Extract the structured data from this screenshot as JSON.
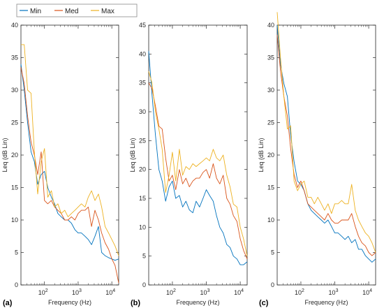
{
  "legend": {
    "placement": "top-left",
    "items": [
      {
        "label": "Min",
        "color": "#0072BD"
      },
      {
        "label": "Med",
        "color": "#D95319"
      },
      {
        "label": "Max",
        "color": "#EDB120"
      }
    ]
  },
  "chart_data": [
    {
      "type": "line",
      "panel_label": "(a)",
      "xlabel": "Frequency (Hz)",
      "ylabel": "Leq (dB Lin)",
      "xscale": "log",
      "xlim": [
        20,
        16000
      ],
      "ylim": [
        0,
        40
      ],
      "yticks": [
        0,
        5,
        10,
        15,
        20,
        25,
        30,
        35,
        40
      ],
      "xticks": [
        {
          "value": 100,
          "base": "10",
          "exp": "2"
        },
        {
          "value": 1000,
          "base": "10",
          "exp": "3"
        },
        {
          "value": 10000,
          "base": "10",
          "exp": "4"
        }
      ],
      "x": [
        20,
        25,
        31.5,
        40,
        50,
        63,
        80,
        100,
        125,
        160,
        200,
        250,
        315,
        400,
        500,
        630,
        800,
        1000,
        1250,
        1600,
        2000,
        2500,
        3150,
        4000,
        5000,
        6300,
        8000,
        10000,
        12500,
        16000
      ],
      "series": [
        {
          "name": "Min",
          "color": "#0072BD",
          "values": [
            34,
            30,
            25,
            20.5,
            19,
            15.5,
            17,
            17.5,
            15,
            13.5,
            12.5,
            11,
            10.5,
            10,
            10,
            9.5,
            8.5,
            8,
            8,
            7.5,
            7,
            6.2,
            7.5,
            9,
            5,
            4.5,
            4.2,
            4,
            3.8,
            4
          ]
        },
        {
          "name": "Med",
          "color": "#D95319",
          "values": [
            33.5,
            31,
            26,
            22,
            20,
            17,
            20.5,
            13,
            12.5,
            13,
            12,
            11.5,
            11,
            10,
            10,
            10.5,
            10,
            11,
            11.5,
            11.5,
            12,
            9,
            11.5,
            10,
            8,
            6.5,
            5.5,
            4,
            3,
            0.3
          ]
        },
        {
          "name": "Max",
          "color": "#EDB120",
          "values": [
            37,
            37,
            30,
            29.5,
            20.5,
            14,
            19,
            21,
            13.5,
            14.5,
            12,
            12.5,
            11,
            11.5,
            10.5,
            11,
            11.5,
            12,
            12.5,
            12,
            13.5,
            14.5,
            13,
            14,
            12,
            9,
            8,
            7,
            6,
            4.5
          ]
        }
      ]
    },
    {
      "type": "line",
      "panel_label": "(b)",
      "xlabel": "Frequency (Hz)",
      "ylabel": "Leq (dB Lin)",
      "xscale": "log",
      "xlim": [
        20,
        16000
      ],
      "ylim": [
        0,
        45
      ],
      "yticks": [
        0,
        5,
        10,
        15,
        20,
        25,
        30,
        35,
        40,
        45
      ],
      "xticks": [
        {
          "value": 100,
          "base": "10",
          "exp": "2"
        },
        {
          "value": 1000,
          "base": "10",
          "exp": "3"
        },
        {
          "value": 10000,
          "base": "10",
          "exp": "4"
        }
      ],
      "x": [
        20,
        25,
        31.5,
        40,
        50,
        63,
        80,
        100,
        125,
        160,
        200,
        250,
        315,
        400,
        500,
        630,
        800,
        1000,
        1250,
        1600,
        2000,
        2500,
        3150,
        4000,
        5000,
        6300,
        8000,
        10000,
        12500,
        16000
      ],
      "series": [
        {
          "name": "Min",
          "color": "#0072BD",
          "values": [
            40.5,
            33,
            26,
            20,
            18,
            14.5,
            17,
            18,
            15,
            15.5,
            13.5,
            14.5,
            13,
            12.5,
            14.5,
            13.5,
            15,
            16.5,
            15.5,
            14.5,
            12,
            10,
            9,
            7,
            6.5,
            5,
            4.5,
            3.5,
            3.5,
            4
          ]
        },
        {
          "name": "Med",
          "color": "#D95319",
          "values": [
            35,
            34,
            31,
            27.5,
            27,
            22,
            18,
            19,
            16.5,
            20,
            17.5,
            18.5,
            17,
            18,
            18.5,
            18.5,
            19.5,
            20,
            18.5,
            21,
            18.5,
            17.5,
            19,
            15,
            14,
            12,
            11,
            8,
            6,
            4.5
          ]
        },
        {
          "name": "Max",
          "color": "#EDB120",
          "values": [
            37,
            35,
            30,
            27,
            23.5,
            16,
            19,
            23,
            18,
            23.5,
            19,
            20.5,
            20,
            21,
            20.5,
            21,
            21.5,
            22,
            21.5,
            23.5,
            22,
            21.5,
            22.5,
            19,
            17,
            14,
            13.5,
            10,
            8,
            5
          ]
        }
      ]
    },
    {
      "type": "line",
      "panel_label": "(c)",
      "xlabel": "Frequency (Hz)",
      "ylabel": "Leq (dB Lin)",
      "xscale": "log",
      "xlim": [
        20,
        16000
      ],
      "ylim": [
        0,
        40
      ],
      "yticks": [
        0,
        5,
        10,
        15,
        20,
        25,
        30,
        35,
        40
      ],
      "xticks": [
        {
          "value": 100,
          "base": "10",
          "exp": "2"
        },
        {
          "value": 1000,
          "base": "10",
          "exp": "3"
        },
        {
          "value": 10000,
          "base": "10",
          "exp": "4"
        }
      ],
      "x": [
        20,
        25,
        31.5,
        40,
        50,
        63,
        80,
        100,
        125,
        160,
        200,
        250,
        315,
        400,
        500,
        630,
        800,
        1000,
        1250,
        1600,
        2000,
        2500,
        3150,
        4000,
        5000,
        6300,
        8000,
        10000,
        12500,
        16000
      ],
      "series": [
        {
          "name": "Min",
          "color": "#0072BD",
          "values": [
            40,
            34,
            31,
            29,
            23,
            19,
            16,
            15.5,
            14.5,
            12.5,
            11.5,
            11,
            10.5,
            10,
            9.5,
            10,
            9,
            8,
            8,
            7.5,
            7,
            7.5,
            6.5,
            7,
            5.5,
            5.5,
            4.5,
            4,
            3.5,
            4
          ]
        },
        {
          "name": "Med",
          "color": "#D95319",
          "values": [
            38.5,
            33,
            29,
            26,
            21,
            17,
            15,
            16,
            14.5,
            12.5,
            12,
            11.5,
            11,
            10.5,
            10,
            11,
            10,
            9.5,
            9.5,
            10,
            10,
            10,
            11,
            9,
            7.5,
            6.5,
            6,
            5,
            4.5,
            5
          ]
        },
        {
          "name": "Max",
          "color": "#EDB120",
          "values": [
            42,
            35,
            29,
            24,
            24.5,
            16,
            14.5,
            15.5,
            16,
            13.5,
            13.5,
            12.5,
            13.5,
            12.5,
            11.5,
            12.5,
            11,
            12.5,
            12.5,
            13,
            12.5,
            12.5,
            15.5,
            11.5,
            10,
            9,
            8,
            7.5,
            6.5,
            5
          ]
        }
      ]
    }
  ]
}
